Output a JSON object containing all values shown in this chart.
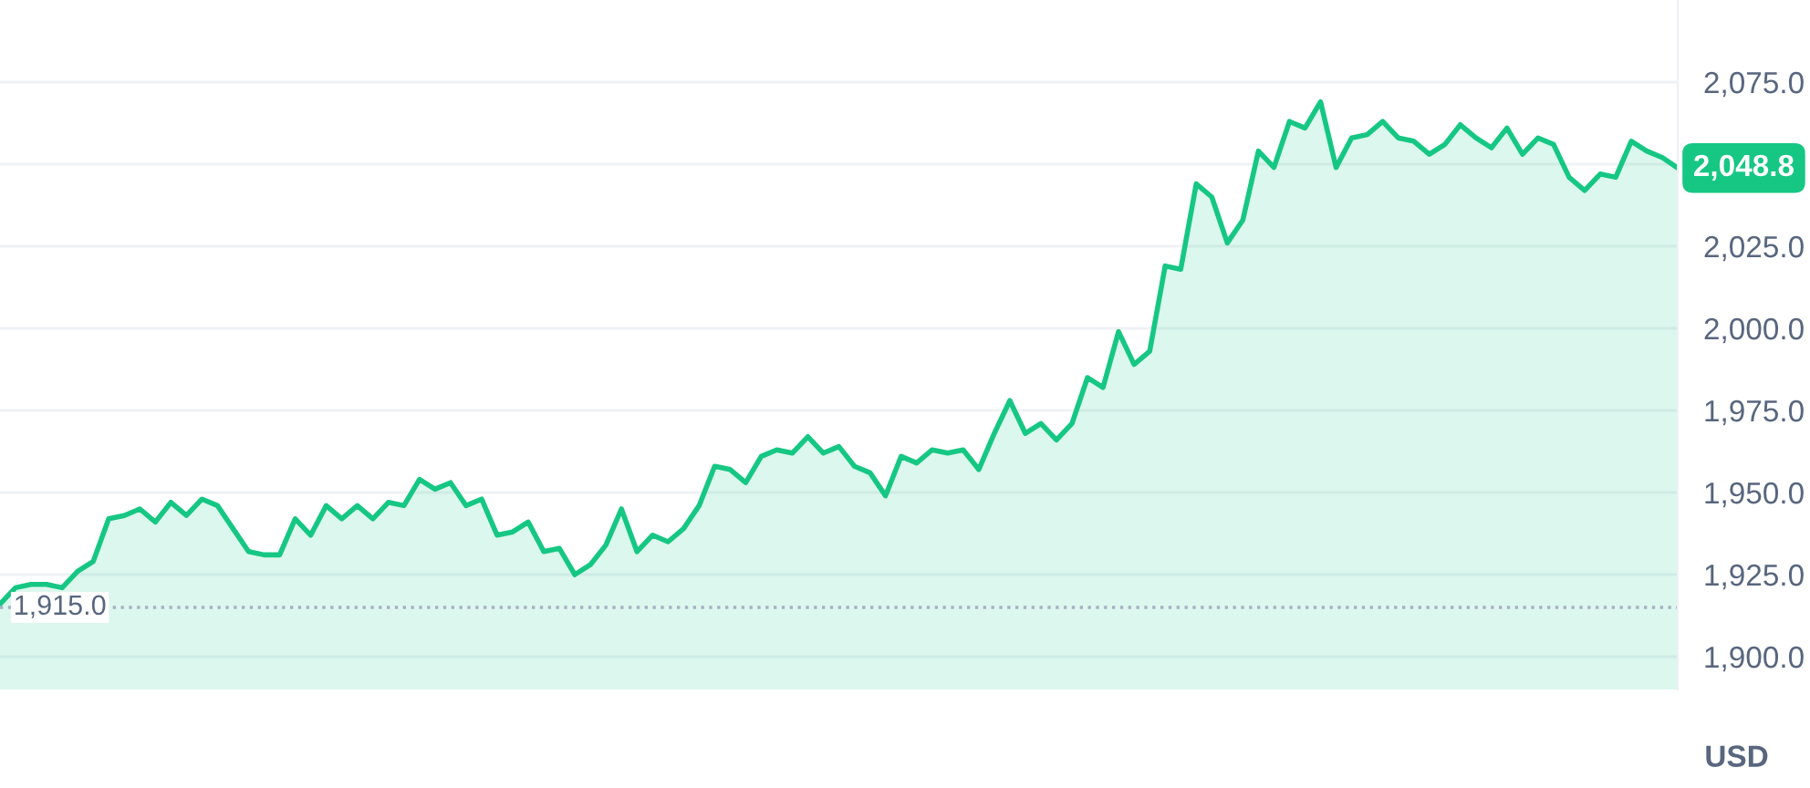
{
  "chart_data": {
    "type": "area",
    "ylabel": "USD",
    "categories": [
      null,
      null,
      null,
      null,
      null,
      null,
      null,
      null,
      null,
      null,
      null,
      null,
      null,
      null,
      null,
      null,
      null,
      null,
      null,
      null,
      null,
      null,
      null,
      null,
      null,
      null,
      null,
      null,
      null,
      null,
      null,
      null,
      null,
      null,
      null,
      null,
      null,
      null,
      null,
      null,
      null,
      null,
      null,
      null,
      null,
      null,
      null,
      null,
      null,
      null,
      null,
      null,
      null,
      null,
      null,
      null,
      null,
      null,
      null,
      null,
      null,
      null,
      null,
      null,
      null,
      null,
      null,
      null,
      null,
      null,
      null,
      null,
      null,
      null,
      null,
      null,
      null,
      null,
      null,
      null,
      null,
      null,
      null,
      null,
      null,
      null,
      null,
      null,
      null,
      null,
      null,
      null,
      null,
      null,
      null,
      null,
      null,
      null,
      null,
      null,
      null,
      null,
      null,
      null,
      null,
      null,
      null,
      null,
      null
    ],
    "series": [
      {
        "color": "#16c784",
        "values": [
          1916,
          1921,
          1922,
          1922,
          1921,
          1926,
          1929,
          1942,
          1943,
          1945,
          1941,
          1947,
          1943,
          1948,
          1946,
          1939,
          1932,
          1931,
          1931,
          1942,
          1937,
          1946,
          1942,
          1946,
          1942,
          1947,
          1946,
          1954,
          1951,
          1953,
          1946,
          1948,
          1937,
          1938,
          1941,
          1932,
          1933,
          1925,
          1928,
          1934,
          1945,
          1932,
          1937,
          1935,
          1939,
          1946,
          1958,
          1957,
          1953,
          1961,
          1963,
          1962,
          1967,
          1962,
          1964,
          1958,
          1956,
          1949,
          1961,
          1959,
          1963,
          1962,
          1963,
          1957,
          1968,
          1978,
          1968,
          1971,
          1966,
          1971,
          1985,
          1982,
          1999,
          1989,
          1993,
          2019,
          2018,
          2044,
          2040,
          2026,
          2033,
          2054,
          2049,
          2063,
          2061,
          2069,
          2049,
          2058,
          2059,
          2063,
          2058,
          2057,
          2053,
          2056,
          2062,
          2058,
          2055,
          2061,
          2053,
          2058,
          2056,
          2046,
          2042,
          2047,
          2046,
          2057,
          2054,
          2052,
          2048.8
        ]
      }
    ],
    "ylim": [
      1890,
      2100
    ],
    "yticks": [
      {
        "value": 1900,
        "label": "1,900.0"
      },
      {
        "value": 1925,
        "label": "1,925.0"
      },
      {
        "value": 1950,
        "label": "1,950.0"
      },
      {
        "value": 1975,
        "label": "1,975.0"
      },
      {
        "value": 2000,
        "label": "2,000.0"
      },
      {
        "value": 2025,
        "label": "2,025.0"
      },
      {
        "value": 2050,
        "label": null
      },
      {
        "value": 2075,
        "label": "2,075.0"
      }
    ],
    "grid": "y",
    "tick_labels": "y",
    "ref_lines": [
      {
        "axis": "y",
        "value": 1915,
        "label": "1,915.0",
        "color": "#a6b0c3",
        "line_style": "dotted"
      }
    ],
    "annotations": [
      "2,048.8"
    ]
  }
}
